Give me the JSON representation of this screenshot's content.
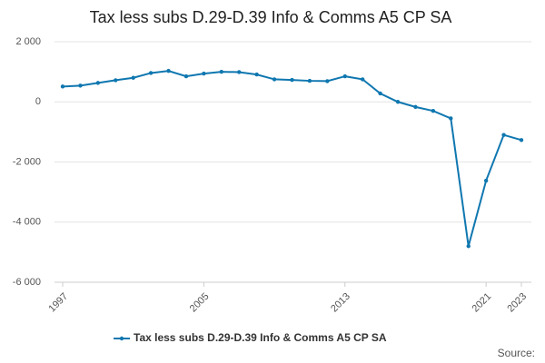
{
  "chart_data": {
    "type": "line",
    "title": "Tax less subs D.29-D.39 Info & Comms A5 CP SA",
    "x": [
      1997,
      1998,
      1999,
      2000,
      2001,
      2002,
      2003,
      2004,
      2005,
      2006,
      2007,
      2008,
      2009,
      2010,
      2011,
      2012,
      2013,
      2014,
      2015,
      2016,
      2017,
      2018,
      2019,
      2020,
      2021,
      2022,
      2023
    ],
    "series": [
      {
        "name": "Tax less subs D.29-D.39 Info & Comms A5 CP SA",
        "color": "#0f77b0",
        "values": [
          510,
          540,
          630,
          720,
          800,
          960,
          1030,
          850,
          940,
          1000,
          990,
          910,
          750,
          730,
          700,
          690,
          850,
          750,
          280,
          0,
          -170,
          -300,
          -550,
          -4800,
          -2620,
          -1100,
          -1270
        ]
      }
    ],
    "xlim": [
      1997,
      2023
    ],
    "xticks": [
      1997,
      2005,
      2013,
      2021,
      2023
    ],
    "ylim": [
      -6000,
      2000
    ],
    "yticks": [
      {
        "value": -6000,
        "label": "-6 000"
      },
      {
        "value": -4000,
        "label": "-4 000"
      },
      {
        "value": -2000,
        "label": "-2 000"
      },
      0,
      {
        "value": 2000,
        "label": "2 000"
      }
    ],
    "grid": true,
    "legend": "bottom",
    "source": "Source:"
  }
}
